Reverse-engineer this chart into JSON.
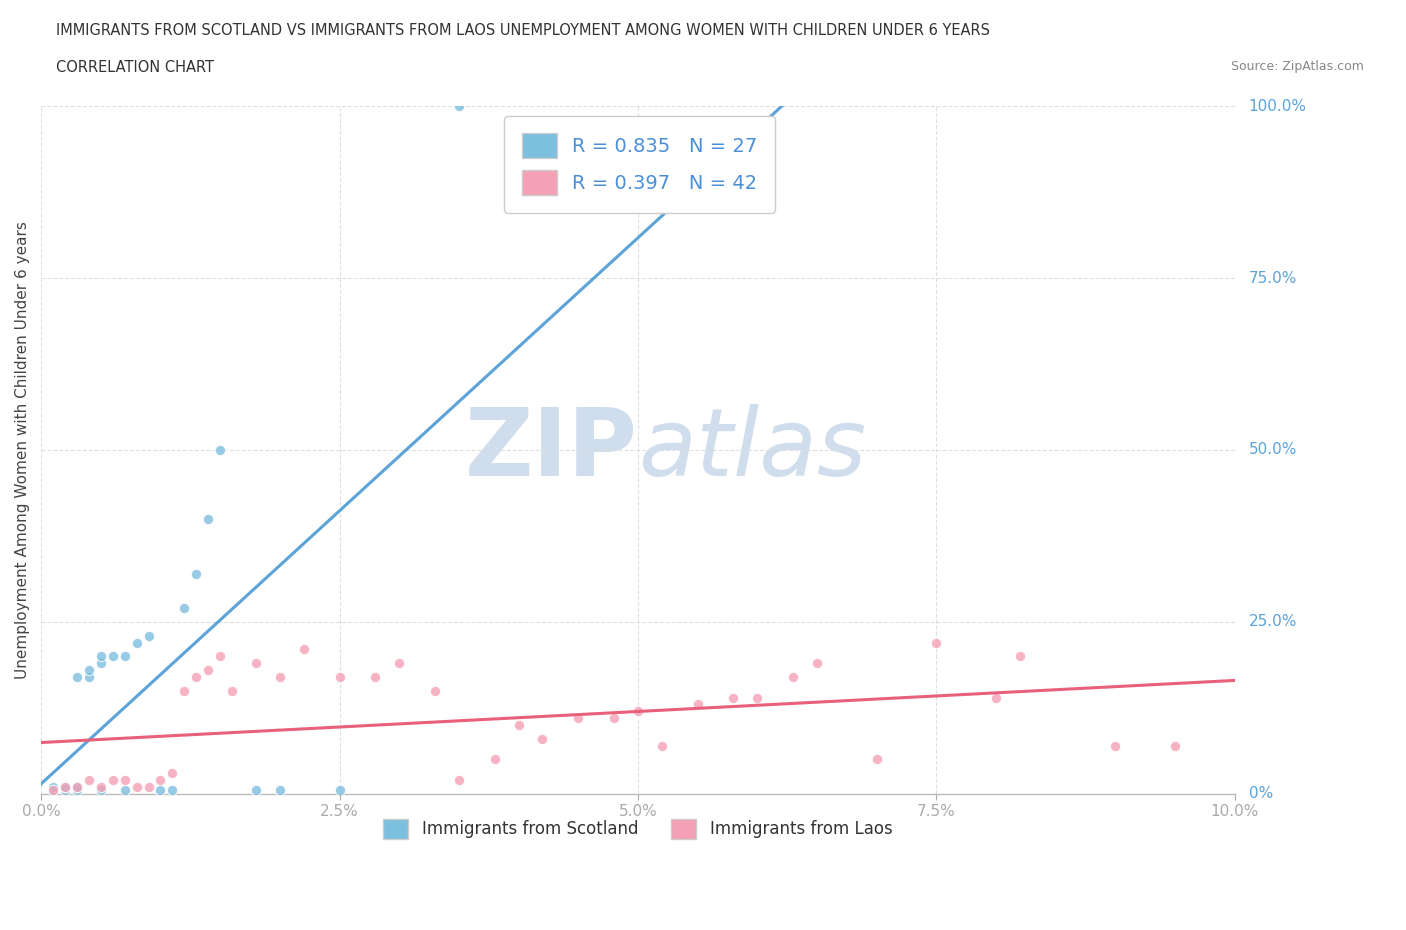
{
  "title_line1": "IMMIGRANTS FROM SCOTLAND VS IMMIGRANTS FROM LAOS UNEMPLOYMENT AMONG WOMEN WITH CHILDREN UNDER 6 YEARS",
  "title_line2": "CORRELATION CHART",
  "source_text": "Source: ZipAtlas.com",
  "ylabel": "Unemployment Among Women with Children Under 6 years",
  "x_tick_labels": [
    "0.0%",
    "2.5%",
    "5.0%",
    "7.5%",
    "10.0%"
  ],
  "x_tick_values": [
    0,
    0.025,
    0.05,
    0.075,
    0.1
  ],
  "y_tick_labels_right": [
    "0%",
    "25.0%",
    "50.0%",
    "75.0%",
    "100.0%"
  ],
  "y_tick_values": [
    0,
    0.25,
    0.5,
    0.75,
    1.0
  ],
  "legend_r_scotland": "R = 0.835",
  "legend_n_scotland": "N = 27",
  "legend_r_laos": "R = 0.397",
  "legend_n_laos": "N = 42",
  "scotland_color": "#7dbfdf",
  "laos_color": "#f4a0b5",
  "scotland_line_color": "#5ba3d9",
  "laos_line_color": "#e8607a",
  "legend_text_color": "#4a90d9",
  "watermark_color": "#cfdded",
  "background_color": "#ffffff",
  "grid_color": "#dddddd",
  "right_label_color": "#5ba3d9",
  "scotland_x": [
    0.001,
    0.001,
    0.002,
    0.002,
    0.003,
    0.003,
    0.003,
    0.004,
    0.004,
    0.005,
    0.005,
    0.005,
    0.006,
    0.007,
    0.007,
    0.008,
    0.009,
    0.01,
    0.011,
    0.012,
    0.013,
    0.014,
    0.015,
    0.018,
    0.02,
    0.025,
    0.035
  ],
  "scotland_y": [
    0.005,
    0.01,
    0.005,
    0.01,
    0.005,
    0.01,
    0.17,
    0.17,
    0.18,
    0.19,
    0.005,
    0.2,
    0.2,
    0.005,
    0.2,
    0.22,
    0.23,
    0.005,
    0.005,
    0.27,
    0.32,
    0.4,
    0.5,
    0.005,
    0.005,
    0.005,
    1.0
  ],
  "laos_x": [
    0.001,
    0.002,
    0.003,
    0.004,
    0.005,
    0.006,
    0.007,
    0.008,
    0.009,
    0.01,
    0.011,
    0.012,
    0.013,
    0.014,
    0.015,
    0.016,
    0.018,
    0.02,
    0.022,
    0.025,
    0.028,
    0.03,
    0.033,
    0.035,
    0.038,
    0.04,
    0.042,
    0.045,
    0.048,
    0.05,
    0.052,
    0.055,
    0.058,
    0.06,
    0.063,
    0.065,
    0.07,
    0.075,
    0.08,
    0.082,
    0.09,
    0.095
  ],
  "laos_y": [
    0.005,
    0.01,
    0.01,
    0.02,
    0.01,
    0.02,
    0.02,
    0.01,
    0.01,
    0.02,
    0.03,
    0.15,
    0.17,
    0.18,
    0.2,
    0.15,
    0.19,
    0.17,
    0.21,
    0.17,
    0.17,
    0.19,
    0.15,
    0.02,
    0.05,
    0.1,
    0.08,
    0.11,
    0.11,
    0.12,
    0.07,
    0.13,
    0.14,
    0.14,
    0.17,
    0.19,
    0.05,
    0.22,
    0.14,
    0.2,
    0.07,
    0.07
  ],
  "scotland_regression_x0": 0.0,
  "scotland_regression_x1": 0.1,
  "laos_regression_x0": 0.0,
  "laos_regression_x1": 0.1,
  "xlim": [
    0,
    0.1
  ],
  "ylim": [
    0,
    1.0
  ]
}
